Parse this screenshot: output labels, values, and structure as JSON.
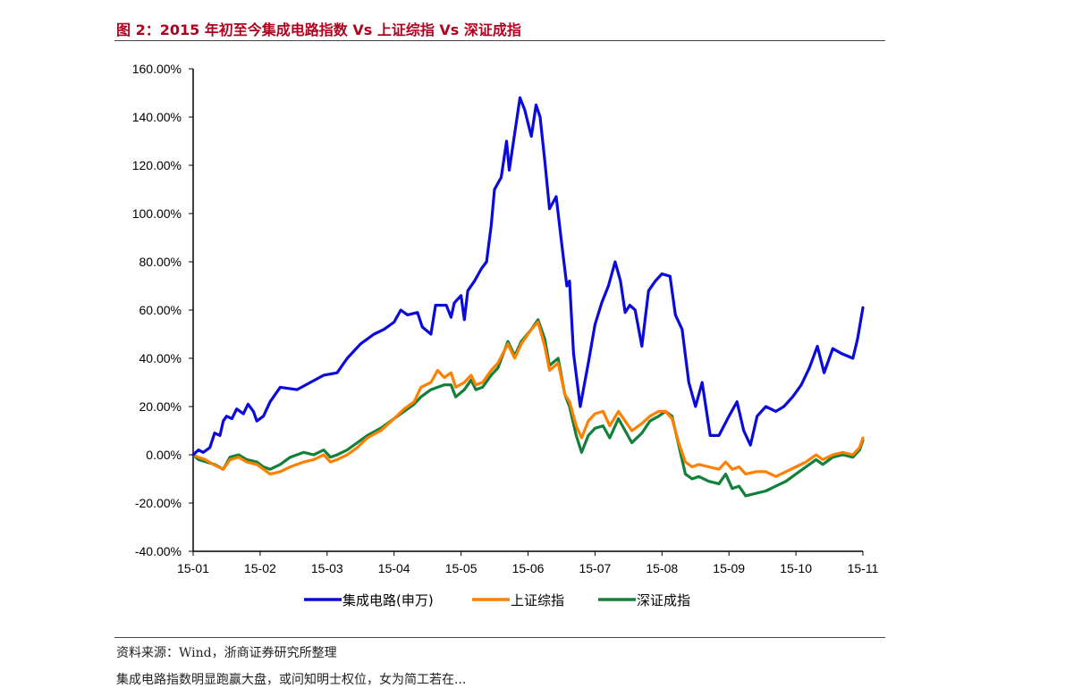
{
  "figure": {
    "title": "图 2：2015 年初至今集成电路指数 Vs 上证综指 Vs 深证成指",
    "source": "资料来源：Wind，浙商证券研究所整理",
    "next_line": "集成电路指数明显跑赢大盘，或问知明士权位，女为简工若在..."
  },
  "chart_data": {
    "type": "line",
    "title": "",
    "xlabel": "",
    "ylabel": "",
    "x_ticks": [
      "15-01",
      "15-02",
      "15-03",
      "15-04",
      "15-05",
      "15-06",
      "15-07",
      "15-08",
      "15-09",
      "15-10",
      "15-11"
    ],
    "y_ticks": [
      "-40.00%",
      "-20.00%",
      "0.00%",
      "20.00%",
      "40.00%",
      "60.00%",
      "80.00%",
      "100.00%",
      "120.00%",
      "140.00%",
      "160.00%"
    ],
    "ylim": [
      -40,
      160
    ],
    "xlim": [
      0,
      10
    ],
    "legend_position": "bottom",
    "series": [
      {
        "name": "集成电路(申万)",
        "color": "#0a0adc",
        "points": [
          [
            0,
            0
          ],
          [
            0.08,
            2
          ],
          [
            0.15,
            1
          ],
          [
            0.25,
            3
          ],
          [
            0.32,
            9
          ],
          [
            0.4,
            8
          ],
          [
            0.45,
            14
          ],
          [
            0.5,
            16
          ],
          [
            0.58,
            15
          ],
          [
            0.65,
            19
          ],
          [
            0.75,
            17
          ],
          [
            0.82,
            21
          ],
          [
            0.9,
            18
          ],
          [
            0.95,
            14
          ],
          [
            1.05,
            16
          ],
          [
            1.15,
            22
          ],
          [
            1.3,
            28
          ],
          [
            1.55,
            27
          ],
          [
            1.75,
            30
          ],
          [
            1.95,
            33
          ],
          [
            2.15,
            34
          ],
          [
            2.3,
            40
          ],
          [
            2.5,
            46
          ],
          [
            2.7,
            50
          ],
          [
            2.85,
            52
          ],
          [
            3.0,
            55
          ],
          [
            3.1,
            60
          ],
          [
            3.2,
            58
          ],
          [
            3.35,
            59
          ],
          [
            3.42,
            53
          ],
          [
            3.55,
            50
          ],
          [
            3.62,
            62
          ],
          [
            3.78,
            62
          ],
          [
            3.85,
            57
          ],
          [
            3.9,
            63
          ],
          [
            4.0,
            66
          ],
          [
            4.05,
            56
          ],
          [
            4.1,
            68
          ],
          [
            4.2,
            72
          ],
          [
            4.3,
            77
          ],
          [
            4.38,
            80
          ],
          [
            4.45,
            95
          ],
          [
            4.5,
            110
          ],
          [
            4.6,
            115
          ],
          [
            4.68,
            130
          ],
          [
            4.72,
            118
          ],
          [
            4.8,
            133
          ],
          [
            4.88,
            148
          ],
          [
            4.95,
            143
          ],
          [
            5.05,
            132
          ],
          [
            5.12,
            145
          ],
          [
            5.18,
            140
          ],
          [
            5.25,
            122
          ],
          [
            5.32,
            102
          ],
          [
            5.42,
            107
          ],
          [
            5.5,
            88
          ],
          [
            5.58,
            70
          ],
          [
            5.62,
            72
          ],
          [
            5.68,
            42
          ],
          [
            5.78,
            20
          ],
          [
            5.9,
            38
          ],
          [
            6.0,
            54
          ],
          [
            6.1,
            63
          ],
          [
            6.2,
            70
          ],
          [
            6.3,
            80
          ],
          [
            6.38,
            72
          ],
          [
            6.45,
            59
          ],
          [
            6.52,
            62
          ],
          [
            6.6,
            60
          ],
          [
            6.7,
            45
          ],
          [
            6.8,
            68
          ],
          [
            6.9,
            72
          ],
          [
            7.0,
            75
          ],
          [
            7.12,
            74
          ],
          [
            7.2,
            58
          ],
          [
            7.3,
            52
          ],
          [
            7.4,
            30
          ],
          [
            7.5,
            20
          ],
          [
            7.6,
            30
          ],
          [
            7.72,
            8
          ],
          [
            7.85,
            8
          ],
          [
            8.0,
            16
          ],
          [
            8.12,
            22
          ],
          [
            8.22,
            10
          ],
          [
            8.32,
            4
          ],
          [
            8.42,
            16
          ],
          [
            8.55,
            20
          ],
          [
            8.7,
            18
          ],
          [
            8.82,
            20
          ],
          [
            8.95,
            24
          ],
          [
            9.08,
            29
          ],
          [
            9.2,
            36
          ],
          [
            9.32,
            45
          ],
          [
            9.42,
            34
          ],
          [
            9.55,
            44
          ],
          [
            9.68,
            42
          ],
          [
            9.85,
            40
          ],
          [
            9.92,
            48
          ],
          [
            10.0,
            61
          ]
        ]
      },
      {
        "name": "上证综指",
        "color": "#ff8000",
        "points": [
          [
            0,
            0
          ],
          [
            0.08,
            -1
          ],
          [
            0.18,
            -2
          ],
          [
            0.3,
            -4
          ],
          [
            0.45,
            -6
          ],
          [
            0.55,
            -2
          ],
          [
            0.68,
            -1
          ],
          [
            0.8,
            -3
          ],
          [
            0.95,
            -4
          ],
          [
            1.05,
            -6
          ],
          [
            1.15,
            -8
          ],
          [
            1.3,
            -7
          ],
          [
            1.45,
            -5
          ],
          [
            1.55,
            -4
          ],
          [
            1.65,
            -3
          ],
          [
            1.8,
            -2
          ],
          [
            1.95,
            0
          ],
          [
            2.05,
            -3
          ],
          [
            2.15,
            -2
          ],
          [
            2.3,
            0
          ],
          [
            2.45,
            3
          ],
          [
            2.6,
            7
          ],
          [
            2.8,
            10
          ],
          [
            3.0,
            15
          ],
          [
            3.15,
            19
          ],
          [
            3.3,
            22
          ],
          [
            3.4,
            28
          ],
          [
            3.55,
            30
          ],
          [
            3.65,
            35
          ],
          [
            3.75,
            32
          ],
          [
            3.85,
            34
          ],
          [
            3.92,
            28
          ],
          [
            4.05,
            30
          ],
          [
            4.15,
            33
          ],
          [
            4.22,
            29
          ],
          [
            4.32,
            30
          ],
          [
            4.45,
            35
          ],
          [
            4.55,
            38
          ],
          [
            4.7,
            46
          ],
          [
            4.8,
            40
          ],
          [
            4.9,
            46
          ],
          [
            5.05,
            52
          ],
          [
            5.15,
            55
          ],
          [
            5.25,
            45
          ],
          [
            5.32,
            35
          ],
          [
            5.45,
            38
          ],
          [
            5.55,
            25
          ],
          [
            5.62,
            22
          ],
          [
            5.72,
            12
          ],
          [
            5.8,
            7
          ],
          [
            5.9,
            14
          ],
          [
            6.0,
            17
          ],
          [
            6.12,
            18
          ],
          [
            6.22,
            12
          ],
          [
            6.35,
            18
          ],
          [
            6.45,
            14
          ],
          [
            6.55,
            10
          ],
          [
            6.7,
            13
          ],
          [
            6.82,
            16
          ],
          [
            6.95,
            18
          ],
          [
            7.05,
            18
          ],
          [
            7.15,
            15
          ],
          [
            7.25,
            5
          ],
          [
            7.35,
            -3
          ],
          [
            7.45,
            -5
          ],
          [
            7.55,
            -4
          ],
          [
            7.7,
            -5
          ],
          [
            7.85,
            -6
          ],
          [
            7.95,
            -3
          ],
          [
            8.05,
            -6
          ],
          [
            8.15,
            -5
          ],
          [
            8.25,
            -8
          ],
          [
            8.4,
            -7
          ],
          [
            8.55,
            -7
          ],
          [
            8.7,
            -9
          ],
          [
            8.85,
            -7
          ],
          [
            9.0,
            -5
          ],
          [
            9.15,
            -3
          ],
          [
            9.3,
            0
          ],
          [
            9.4,
            -2
          ],
          [
            9.55,
            0
          ],
          [
            9.7,
            1
          ],
          [
            9.85,
            0
          ],
          [
            9.95,
            3
          ],
          [
            10.0,
            7
          ]
        ]
      },
      {
        "name": "深证成指",
        "color": "#12803a",
        "points": [
          [
            0,
            0
          ],
          [
            0.08,
            -2
          ],
          [
            0.2,
            -3
          ],
          [
            0.32,
            -4
          ],
          [
            0.45,
            -6
          ],
          [
            0.55,
            -1
          ],
          [
            0.68,
            0
          ],
          [
            0.8,
            -2
          ],
          [
            0.95,
            -3
          ],
          [
            1.05,
            -5
          ],
          [
            1.15,
            -6
          ],
          [
            1.3,
            -4
          ],
          [
            1.45,
            -1
          ],
          [
            1.55,
            0
          ],
          [
            1.65,
            1
          ],
          [
            1.8,
            0
          ],
          [
            1.95,
            2
          ],
          [
            2.05,
            -1
          ],
          [
            2.15,
            0
          ],
          [
            2.3,
            2
          ],
          [
            2.45,
            5
          ],
          [
            2.6,
            8
          ],
          [
            2.8,
            11
          ],
          [
            3.0,
            15
          ],
          [
            3.15,
            18
          ],
          [
            3.3,
            21
          ],
          [
            3.4,
            24
          ],
          [
            3.55,
            27
          ],
          [
            3.65,
            28
          ],
          [
            3.75,
            29
          ],
          [
            3.85,
            29
          ],
          [
            3.92,
            24
          ],
          [
            4.05,
            27
          ],
          [
            4.15,
            31
          ],
          [
            4.22,
            27
          ],
          [
            4.32,
            28
          ],
          [
            4.45,
            33
          ],
          [
            4.55,
            36
          ],
          [
            4.7,
            47
          ],
          [
            4.8,
            41
          ],
          [
            4.9,
            47
          ],
          [
            5.05,
            52
          ],
          [
            5.15,
            56
          ],
          [
            5.25,
            48
          ],
          [
            5.32,
            37
          ],
          [
            5.45,
            40
          ],
          [
            5.55,
            25
          ],
          [
            5.62,
            20
          ],
          [
            5.72,
            8
          ],
          [
            5.8,
            1
          ],
          [
            5.9,
            8
          ],
          [
            6.0,
            11
          ],
          [
            6.12,
            12
          ],
          [
            6.22,
            7
          ],
          [
            6.35,
            15
          ],
          [
            6.45,
            10
          ],
          [
            6.55,
            5
          ],
          [
            6.7,
            9
          ],
          [
            6.82,
            14
          ],
          [
            6.95,
            16
          ],
          [
            7.05,
            18
          ],
          [
            7.15,
            16
          ],
          [
            7.25,
            4
          ],
          [
            7.35,
            -8
          ],
          [
            7.45,
            -10
          ],
          [
            7.55,
            -9
          ],
          [
            7.7,
            -11
          ],
          [
            7.85,
            -12
          ],
          [
            7.95,
            -8
          ],
          [
            8.05,
            -14
          ],
          [
            8.15,
            -13
          ],
          [
            8.25,
            -17
          ],
          [
            8.4,
            -16
          ],
          [
            8.55,
            -15
          ],
          [
            8.7,
            -13
          ],
          [
            8.85,
            -11
          ],
          [
            9.0,
            -8
          ],
          [
            9.15,
            -5
          ],
          [
            9.3,
            -2
          ],
          [
            9.4,
            -4
          ],
          [
            9.55,
            -1
          ],
          [
            9.7,
            0
          ],
          [
            9.85,
            -1
          ],
          [
            9.95,
            2
          ],
          [
            10.0,
            6
          ]
        ]
      }
    ]
  }
}
